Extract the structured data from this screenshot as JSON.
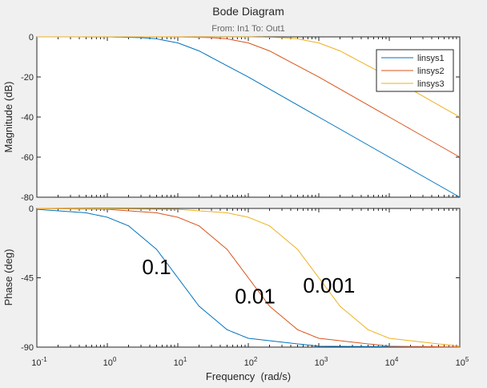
{
  "chart_data": {
    "type": "line",
    "title": "Bode Diagram",
    "subtitle": "From: In1  To: Out1",
    "xlabel": "Frequency  (rad/s)",
    "x_scale": "log",
    "xlim": [
      0.1,
      100000
    ],
    "x_ticks": [
      {
        "base": "10",
        "exp": "-1"
      },
      {
        "base": "10",
        "exp": "0"
      },
      {
        "base": "10",
        "exp": "1"
      },
      {
        "base": "10",
        "exp": "2"
      },
      {
        "base": "10",
        "exp": "3"
      },
      {
        "base": "10",
        "exp": "4"
      },
      {
        "base": "10",
        "exp": "5"
      }
    ],
    "grid": false,
    "legend": {
      "position": "top-right",
      "entries": [
        "linsys1",
        "linsys2",
        "linsys3"
      ]
    },
    "colors": [
      "#0072bd",
      "#d95319",
      "#edb120"
    ],
    "panels": [
      {
        "id": "magnitude",
        "ylabel": "Magnitude (dB)",
        "ylim": [
          -80,
          0
        ],
        "y_ticks": [
          "0",
          "-20",
          "-40",
          "-60",
          "-80"
        ],
        "series": [
          {
            "name": "linsys1",
            "x": [
              0.1,
              1,
              3,
              5,
              10,
              20,
              100,
              1000,
              10000,
              100000
            ],
            "y": [
              0,
              -0.04,
              -0.37,
              -0.97,
              -3.01,
              -6.99,
              -20.04,
              -40,
              -60,
              -80
            ]
          },
          {
            "name": "linsys2",
            "x": [
              0.1,
              10,
              30,
              50,
              100,
              200,
              1000,
              10000,
              100000
            ],
            "y": [
              0,
              -0.04,
              -0.37,
              -0.97,
              -3.01,
              -6.99,
              -20.04,
              -40,
              -60
            ]
          },
          {
            "name": "linsys3",
            "x": [
              0.1,
              100,
              300,
              500,
              1000,
              2000,
              10000,
              100000
            ],
            "y": [
              0,
              -0.04,
              -0.37,
              -0.97,
              -3.01,
              -6.99,
              -20.04,
              -40
            ]
          }
        ]
      },
      {
        "id": "phase",
        "ylabel": "Phase (deg)",
        "ylim": [
          -90,
          0
        ],
        "y_ticks": [
          "0",
          "-45",
          "-90"
        ],
        "series": [
          {
            "name": "linsys1",
            "x": [
              0.1,
              0.5,
              1,
              2,
              5,
              10,
              20,
              50,
              100,
              1000,
              100000
            ],
            "y": [
              -0.57,
              -2.86,
              -5.71,
              -11.31,
              -26.57,
              -45,
              -63.43,
              -78.69,
              -84.29,
              -89.43,
              -90
            ]
          },
          {
            "name": "linsys2",
            "x": [
              0.1,
              1,
              5,
              10,
              20,
              50,
              100,
              200,
              500,
              1000,
              10000,
              100000
            ],
            "y": [
              -0.06,
              -0.57,
              -2.86,
              -5.71,
              -11.31,
              -26.57,
              -45,
              -63.43,
              -78.69,
              -84.29,
              -89.43,
              -89.94
            ]
          },
          {
            "name": "linsys3",
            "x": [
              0.1,
              10,
              50,
              100,
              200,
              500,
              1000,
              2000,
              5000,
              10000,
              100000
            ],
            "y": [
              0,
              -0.57,
              -2.86,
              -5.71,
              -11.31,
              -26.57,
              -45,
              -63.43,
              -78.69,
              -84.29,
              -89.43
            ]
          }
        ]
      }
    ],
    "annotations": [
      {
        "text": "0.1",
        "x": 5,
        "y": -38
      },
      {
        "text": "0.01",
        "x": 125,
        "y": -57
      },
      {
        "text": "0.001",
        "x": 1400,
        "y": -50
      }
    ]
  }
}
